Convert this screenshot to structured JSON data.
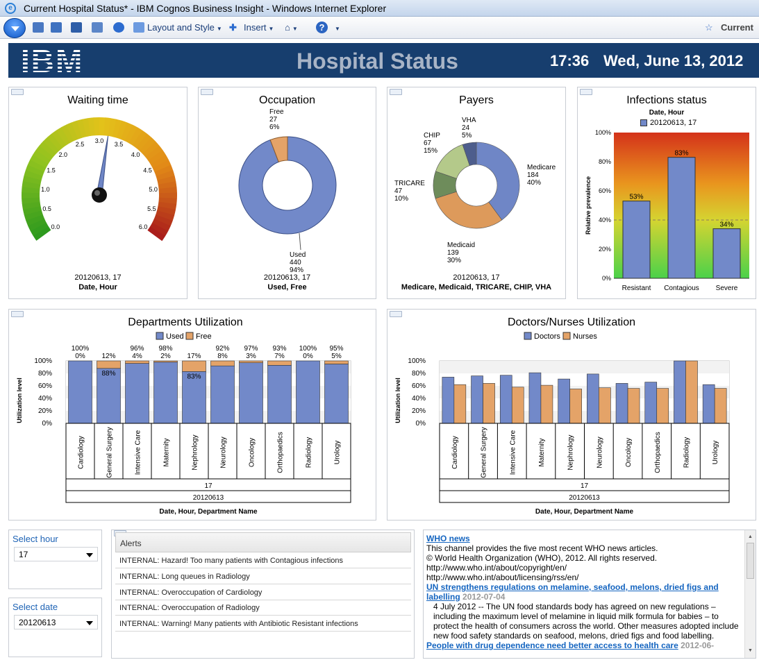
{
  "window": {
    "title": "Current Hospital Status* - IBM Cognos Business Insight - Windows Internet Explorer",
    "ie_icon": "e"
  },
  "toolbar": {
    "layout_label": "Layout and Style",
    "insert_label": "Insert",
    "current_label": "Current"
  },
  "header": {
    "title": "Hospital Status",
    "time": "17:36",
    "date": "Wed, June 13, 2012",
    "logo": "IBM"
  },
  "waiting": {
    "title": "Waiting time",
    "ticks": [
      "0.0",
      "0.5",
      "1.0",
      "1.5",
      "2.0",
      "2.5",
      "3.0",
      "3.5",
      "4.0",
      "4.5",
      "5.0",
      "5.5",
      "6.0"
    ],
    "value": 3.2,
    "min": 0,
    "max": 6,
    "footer_value": "20120613, 17",
    "footer_label": "Date, Hour"
  },
  "occupation": {
    "title": "Occupation",
    "used": {
      "name": "Used",
      "count": "440",
      "pct": "94%"
    },
    "free": {
      "name": "Free",
      "count": "27",
      "pct": "6%"
    },
    "footer_value": "20120613, 17",
    "footer_label": "Used, Free"
  },
  "payers": {
    "title": "Payers",
    "slices": [
      {
        "name": "Medicare",
        "count": "184",
        "pct": "40%"
      },
      {
        "name": "Medicaid",
        "count": "139",
        "pct": "30%"
      },
      {
        "name": "TRICARE",
        "count": "47",
        "pct": "10%"
      },
      {
        "name": "CHIP",
        "count": "67",
        "pct": "15%"
      },
      {
        "name": "VHA",
        "count": "24",
        "pct": "5%"
      }
    ],
    "footer_value": "20120613, 17",
    "footer_label": "Medicare, Medicaid, TRICARE, CHIP, VHA"
  },
  "colors": {
    "used": "#7289c9",
    "free": "#e4a368",
    "medicare": "#6f86c6",
    "medicaid": "#dd9a5b",
    "tricare": "#6e8c5b",
    "chip": "#b4c98a",
    "vha": "#4d5d8c",
    "gauge_green": "#2e9a1e",
    "gauge_red": "#a6161b"
  },
  "infections": {
    "title": "Infections status",
    "legend_title": "Date, Hour",
    "legend_item": "20120613, 17",
    "ylabel": "Relative prevalence",
    "yticks": [
      "0%",
      "20%",
      "40%",
      "60%",
      "80%",
      "100%"
    ],
    "categories": [
      "Resistant",
      "Contagious",
      "Severe"
    ],
    "values": [
      53,
      83,
      34
    ],
    "labels": [
      "53%",
      "83%",
      "34%"
    ]
  },
  "departments": {
    "title": "Departments Utilization",
    "legend": [
      "Used",
      "Free"
    ],
    "ylabel": "Utilization level",
    "yticks": [
      "0%",
      "20%",
      "40%",
      "60%",
      "80%",
      "100%"
    ],
    "categories": [
      "Cardiology",
      "General Surgery",
      "Intensive Care",
      "Maternity",
      "Nephrology",
      "Neurology",
      "Oncology",
      "Orthopaedics",
      "Radiology",
      "Urology"
    ],
    "used": [
      100,
      88,
      96,
      98,
      83,
      92,
      97,
      93,
      100,
      95
    ],
    "used_labels": [
      "100%",
      "",
      "96%",
      "98%",
      "",
      "92%",
      "97%",
      "93%",
      "100%",
      "95%"
    ],
    "free_labels": [
      "0%",
      "12%",
      "4%",
      "2%",
      "17%",
      "8%",
      "3%",
      "7%",
      "0%",
      "5%"
    ],
    "inside_labels": [
      "",
      "88%",
      "",
      "",
      "83%",
      "",
      "",
      "",
      "",
      ""
    ],
    "hour": "17",
    "date": "20120613",
    "xlabel": "Date, Hour, Department Name"
  },
  "doctors": {
    "title": "Doctors/Nurses Utilization",
    "legend": [
      "Doctors",
      "Nurses"
    ],
    "ylabel": "Utilization level",
    "yticks": [
      "0%",
      "20%",
      "40%",
      "60%",
      "80%",
      "100%"
    ],
    "categories": [
      "Cardiology",
      "General Surgery",
      "Intensive Care",
      "Maternity",
      "Nephrology",
      "Neurology",
      "Oncology",
      "Orthopaedics",
      "Radiology",
      "Urology"
    ],
    "doctors": [
      74,
      76,
      77,
      81,
      71,
      79,
      64,
      66,
      100,
      62
    ],
    "nurses": [
      62,
      64,
      58,
      61,
      55,
      57,
      56,
      56,
      100,
      56
    ],
    "hour": "17",
    "date": "20120613",
    "xlabel": "Date, Hour, Department Name"
  },
  "select_hour": {
    "label": "Select hour",
    "value": "17"
  },
  "select_date": {
    "label": "Select date",
    "value": "20120613"
  },
  "alerts": {
    "header": "Alerts",
    "items": [
      "INTERNAL: Hazard! Too many patients with Contagious infections",
      "INTERNAL: Long queues in Radiology",
      "INTERNAL: Overoccupation of Cardiology",
      "INTERNAL: Overoccupation of Radiology",
      "INTERNAL: Warning! Many patients with Antibiotic Resistant infections"
    ]
  },
  "news": {
    "title": "WHO news",
    "intro": "This channel provides the five most recent WHO news articles.",
    "copyright": "© World Health Organization (WHO), 2012. All rights reserved.",
    "link1": "http://www.who.int/about/copyright/en/",
    "link2": "http://www.who.int/about/licensing/rss/en/",
    "article1_title": "UN strengthens regulations on melamine, seafood, melons, dried figs and labelling",
    "article1_date": "2012-07-04",
    "article1_body": "4 July 2012 -- The UN food standards body has agreed on new regulations – including the maximum level of melamine in liquid milk formula for babies – to protect the health of consumers across the world. Other measures adopted include new food safety standards on seafood, melons, dried figs and food labelling.",
    "article2_title": "People with drug dependence need better access to health care",
    "article2_date": "2012-06-"
  }
}
